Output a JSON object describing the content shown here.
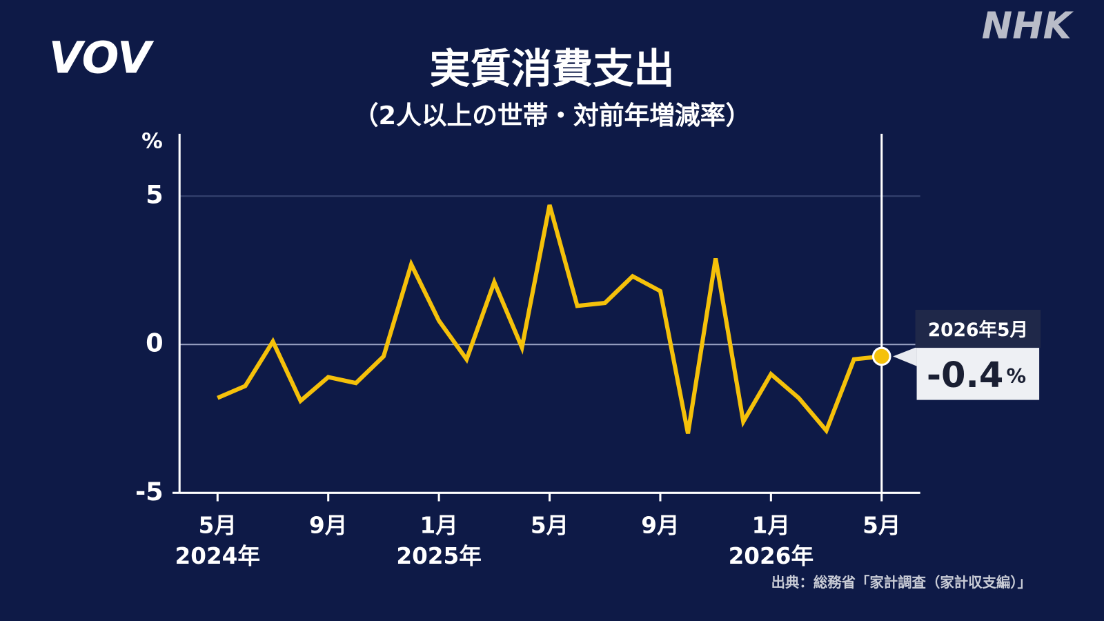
{
  "chart_data": {
    "type": "line",
    "title": "実質消費支出",
    "subtitle": "（2人以上の世帯・対前年増減率）",
    "y_label": "%",
    "categories": [
      "5月",
      null,
      null,
      null,
      "9月",
      null,
      null,
      null,
      "1月",
      null,
      null,
      null,
      "5月",
      null,
      null,
      null,
      "9月",
      null,
      null,
      null,
      "1月",
      null,
      null,
      null,
      "5月"
    ],
    "year_labels": [
      "2024年",
      null,
      null,
      null,
      null,
      null,
      null,
      null,
      "2025年",
      null,
      null,
      null,
      null,
      null,
      null,
      null,
      null,
      null,
      null,
      null,
      "2026年",
      null,
      null,
      null,
      null
    ],
    "series": [
      {
        "name": "実質消費支出",
        "color": "#f5c10a",
        "values": [
          -1.8,
          -1.4,
          0.1,
          -1.9,
          -1.1,
          -1.3,
          -0.4,
          2.7,
          0.8,
          -0.5,
          2.1,
          -0.1,
          4.7,
          1.3,
          1.4,
          2.3,
          1.8,
          -3.0,
          2.9,
          -2.6,
          -1.0,
          -1.8,
          -2.9,
          -0.5,
          -0.4
        ]
      }
    ],
    "ylim": [
      -5,
      7.1
    ],
    "yticks": [
      -5,
      0,
      5
    ],
    "callout": {
      "date": "2026年5月",
      "value": "-0.4",
      "unit": "%"
    },
    "source": "出典：総務省「家計調査（家計収支編）」",
    "logos": {
      "left": "VOV",
      "right": "NHK"
    }
  }
}
